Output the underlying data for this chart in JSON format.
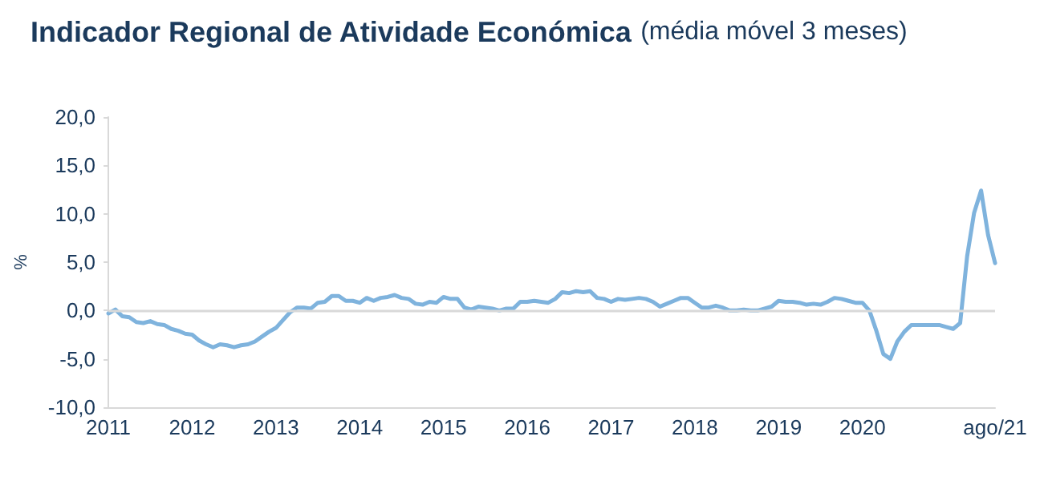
{
  "chart_data": {
    "type": "line",
    "title": "Indicador Regional de Atividade Económica",
    "subtitle": "(média móvel 3 meses)",
    "ylabel": "%",
    "categories": [
      "2011",
      null,
      null,
      null,
      null,
      null,
      null,
      null,
      null,
      null,
      null,
      null,
      "2012",
      null,
      null,
      null,
      null,
      null,
      null,
      null,
      null,
      null,
      null,
      null,
      "2013",
      null,
      null,
      null,
      null,
      null,
      null,
      null,
      null,
      null,
      null,
      null,
      "2014",
      null,
      null,
      null,
      null,
      null,
      null,
      null,
      null,
      null,
      null,
      null,
      "2015",
      null,
      null,
      null,
      null,
      null,
      null,
      null,
      null,
      null,
      null,
      null,
      "2016",
      null,
      null,
      null,
      null,
      null,
      null,
      null,
      null,
      null,
      null,
      null,
      "2017",
      null,
      null,
      null,
      null,
      null,
      null,
      null,
      null,
      null,
      null,
      null,
      "2018",
      null,
      null,
      null,
      null,
      null,
      null,
      null,
      null,
      null,
      null,
      null,
      "2019",
      null,
      null,
      null,
      null,
      null,
      null,
      null,
      null,
      null,
      null,
      null,
      "2020",
      null,
      null,
      null,
      null,
      null,
      null,
      null,
      null,
      null,
      null,
      null,
      null,
      null,
      null,
      null,
      null,
      null,
      null,
      "ago/21"
    ],
    "series": [
      {
        "color": "#7fb3dd",
        "values": [
          -0.3,
          0.1,
          -0.6,
          -0.7,
          -1.2,
          -1.3,
          -1.1,
          -1.4,
          -1.5,
          -1.9,
          -2.1,
          -2.4,
          -2.5,
          -3.1,
          -3.5,
          -3.8,
          -3.5,
          -3.6,
          -3.8,
          -3.6,
          -3.5,
          -3.2,
          -2.7,
          -2.2,
          -1.8,
          -1.0,
          -0.2,
          0.3,
          0.3,
          0.2,
          0.8,
          0.9,
          1.5,
          1.5,
          1.0,
          1.0,
          0.8,
          1.3,
          1.0,
          1.3,
          1.4,
          1.6,
          1.3,
          1.2,
          0.7,
          0.6,
          0.9,
          0.8,
          1.4,
          1.2,
          1.2,
          0.3,
          0.1,
          0.4,
          0.3,
          0.2,
          0.0,
          0.2,
          0.2,
          0.9,
          0.9,
          1.0,
          0.9,
          0.8,
          1.2,
          1.9,
          1.8,
          2.0,
          1.9,
          2.0,
          1.3,
          1.2,
          0.9,
          1.2,
          1.1,
          1.2,
          1.3,
          1.2,
          0.9,
          0.4,
          0.7,
          1.0,
          1.3,
          1.3,
          0.8,
          0.3,
          0.3,
          0.5,
          0.3,
          0.0,
          0.0,
          0.1,
          0.0,
          0.0,
          0.2,
          0.4,
          1.0,
          0.9,
          0.9,
          0.8,
          0.6,
          0.7,
          0.6,
          0.9,
          1.3,
          1.2,
          1.0,
          0.8,
          0.8,
          0.0,
          -2.1,
          -4.5,
          -5.0,
          -3.2,
          -2.2,
          -1.5,
          -1.5,
          -1.5,
          -1.5,
          -1.5,
          -1.7,
          -1.9,
          -1.3,
          5.6,
          10.1,
          12.4,
          7.8,
          4.9
        ]
      }
    ],
    "ylim": [
      -10,
      20
    ],
    "yticks": [
      {
        "value": -10,
        "label": "-10,0"
      },
      {
        "value": -5,
        "label": "-5,0"
      },
      {
        "value": 0,
        "label": "0,0"
      },
      {
        "value": 5,
        "label": "5,0"
      },
      {
        "value": 10,
        "label": "10,0"
      },
      {
        "value": 15,
        "label": "15,0"
      },
      {
        "value": 20,
        "label": "20,0"
      }
    ],
    "ref_lines": [
      {
        "axis": "y",
        "value": 0,
        "color": "#d9d9d9"
      }
    ],
    "grid": false,
    "marker": "none",
    "line_style": "solid"
  }
}
